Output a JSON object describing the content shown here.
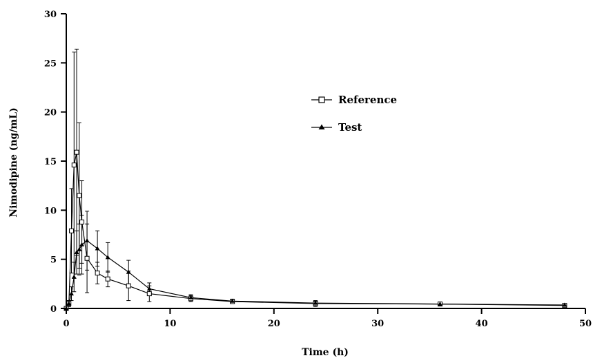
{
  "chart_data": {
    "type": "line",
    "title": "",
    "xlabel": "Time (h)",
    "ylabel": "Nimodipine (ng/mL)",
    "xlim": [
      0,
      50
    ],
    "ylim": [
      0,
      30
    ],
    "xticks": [
      "0",
      "10",
      "20",
      "30",
      "40",
      "50"
    ],
    "yticks": [
      "0",
      "5",
      "10",
      "15",
      "20",
      "25",
      "30"
    ],
    "grid": false,
    "legend_position": "center-right",
    "series": [
      {
        "name": "Reference",
        "marker": "open-square",
        "x": [
          0,
          0.25,
          0.5,
          0.75,
          1,
          1.25,
          1.5,
          2,
          3,
          4,
          6,
          8,
          12,
          16,
          24,
          36,
          48
        ],
        "y": [
          0,
          0.5,
          7.9,
          14.6,
          15.9,
          11.5,
          8.8,
          5.1,
          3.6,
          3.0,
          2.3,
          1.5,
          1.0,
          0.7,
          0.5,
          0.45,
          0.3
        ],
        "error": [
          0,
          0.3,
          4.3,
          11.5,
          10.5,
          7.4,
          4.2,
          3.5,
          1.1,
          0.8,
          1.5,
          0.8,
          0.3,
          0.2,
          0.3,
          0.1,
          0.1
        ]
      },
      {
        "name": "Test",
        "marker": "filled-triangle",
        "x": [
          0,
          0.25,
          0.5,
          0.75,
          1,
          1.25,
          1.5,
          2,
          3,
          4,
          6,
          8,
          12,
          16,
          24,
          36,
          48
        ],
        "y": [
          0,
          0.5,
          1.5,
          3.2,
          5.7,
          6.0,
          6.5,
          6.9,
          6.1,
          5.2,
          3.7,
          2.0,
          1.1,
          0.75,
          0.55,
          0.45,
          0.35
        ],
        "error": [
          0,
          0.3,
          0.7,
          1.5,
          2.2,
          2.6,
          3.0,
          3.0,
          1.8,
          1.5,
          1.2,
          0.6,
          0.3,
          0.2,
          0.2,
          0.1,
          0.1
        ]
      }
    ]
  }
}
